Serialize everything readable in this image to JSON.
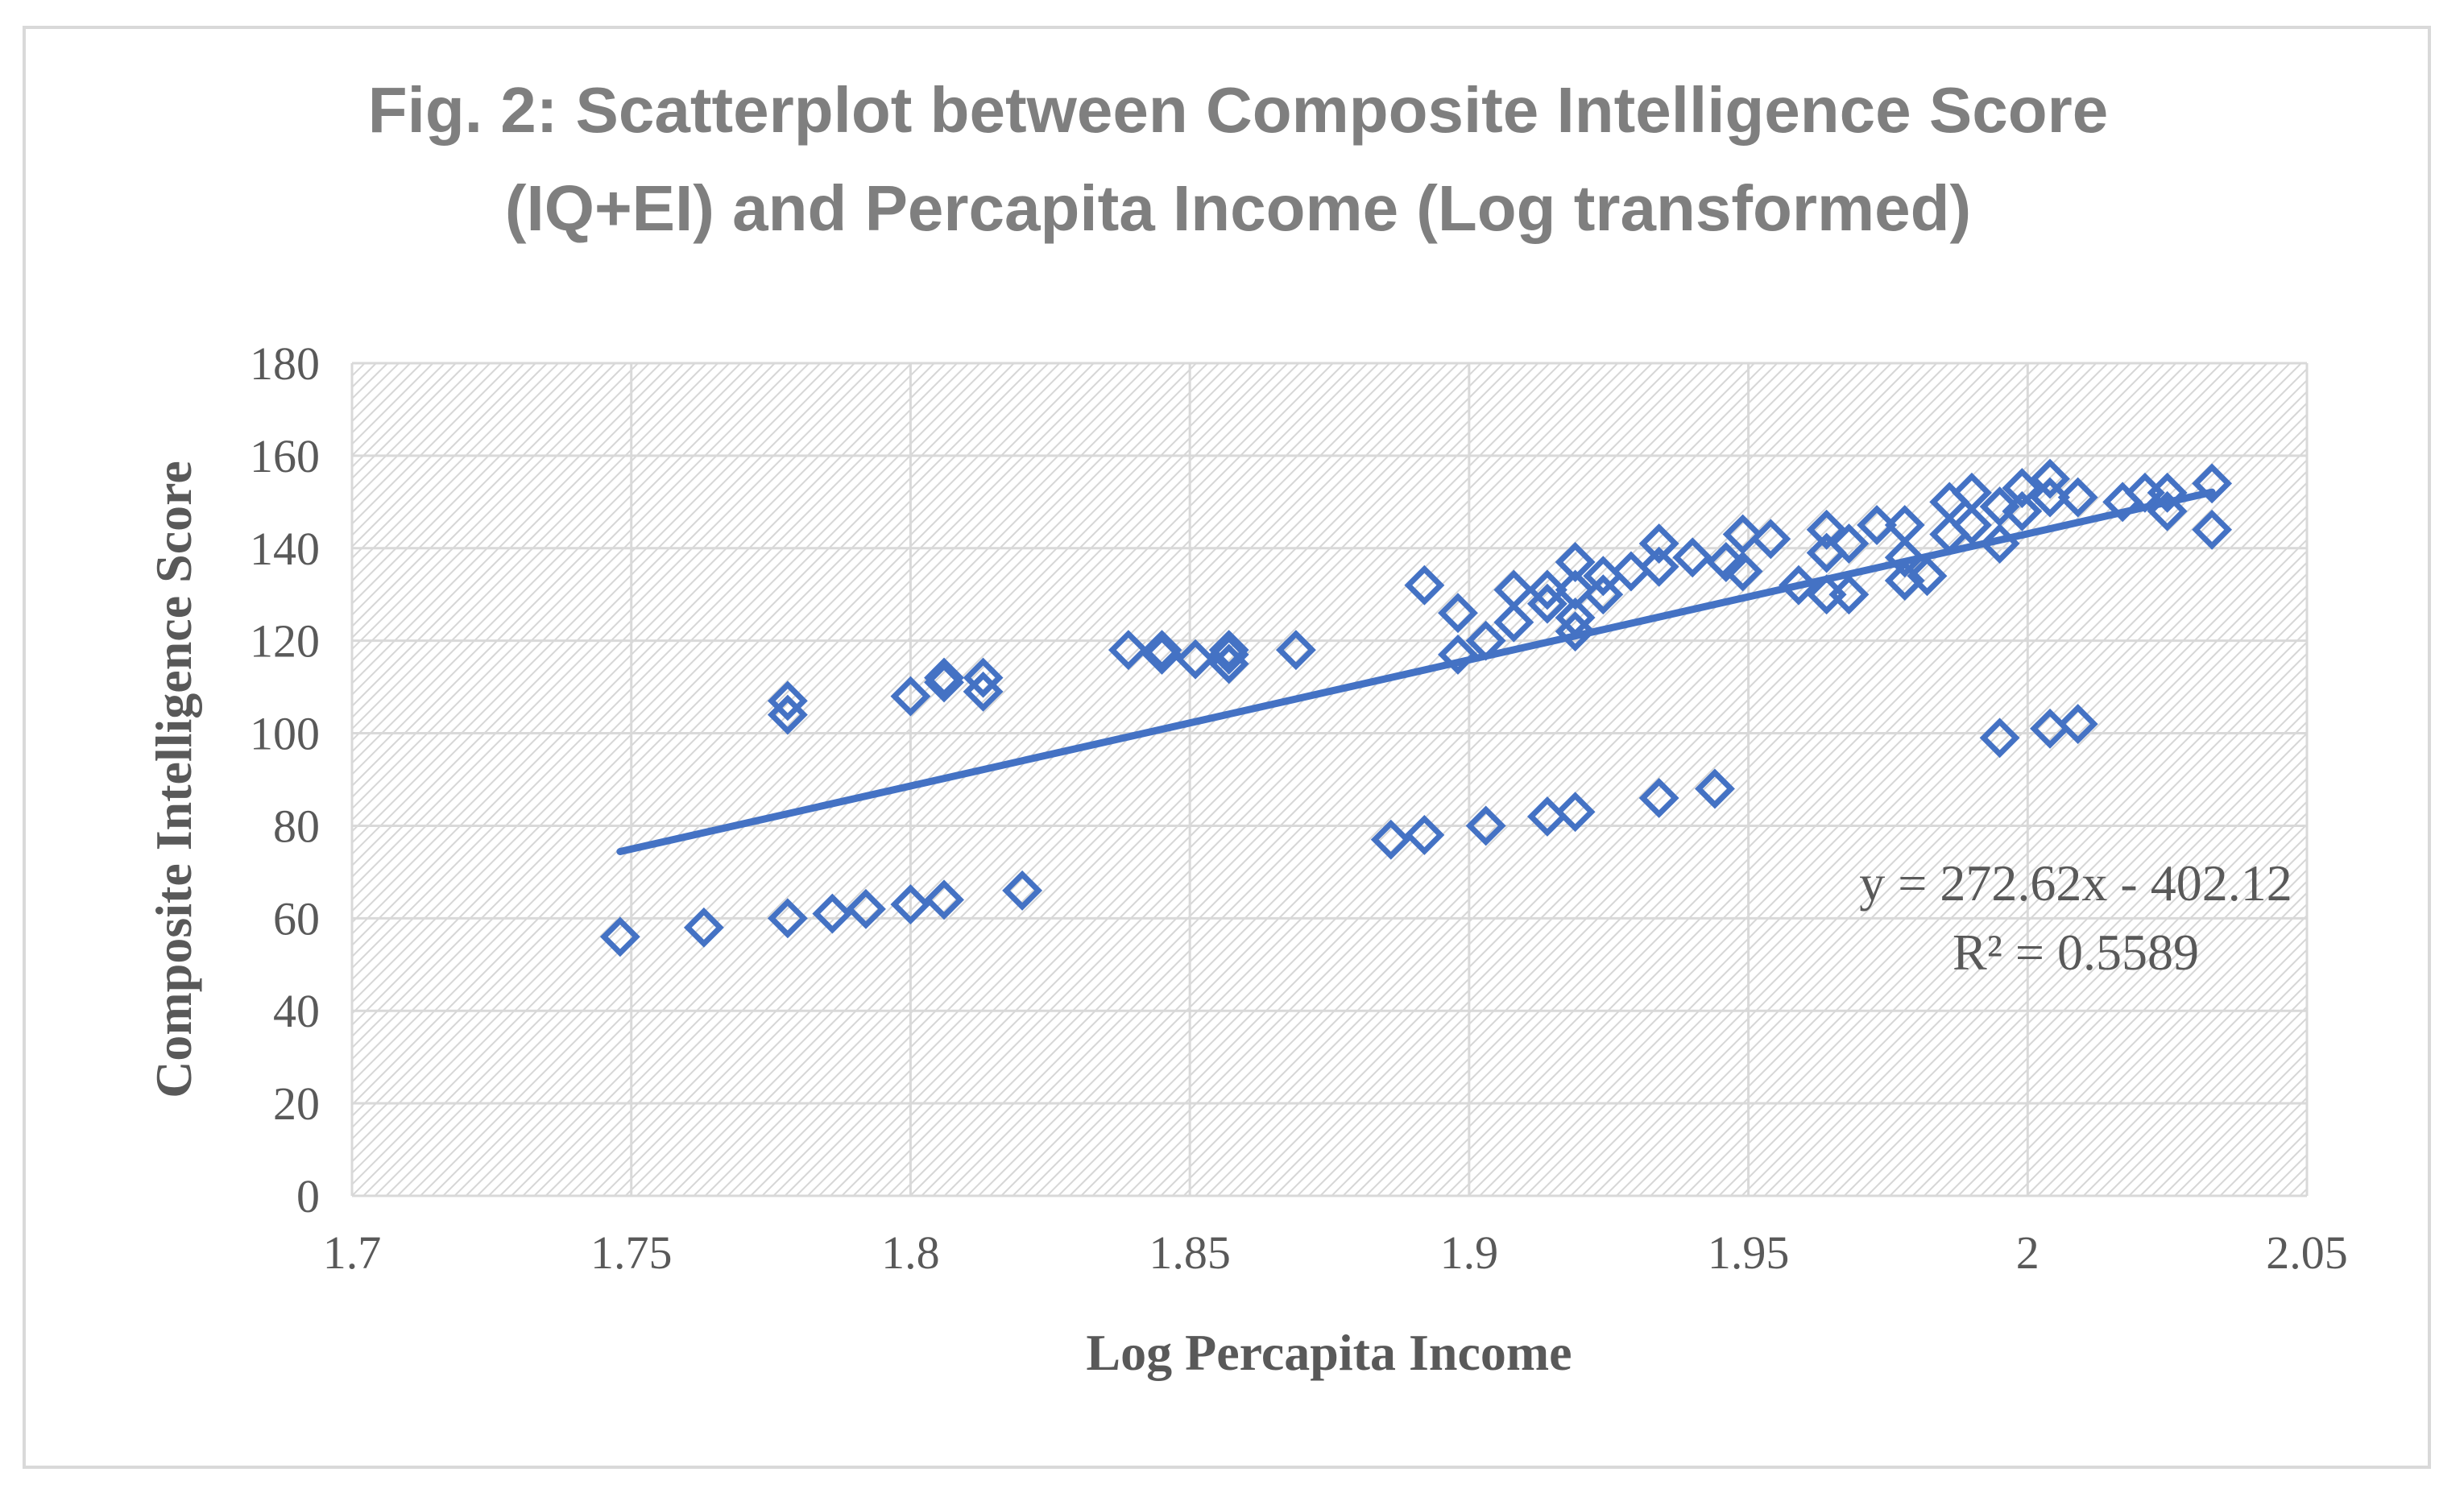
{
  "chart_data": {
    "type": "scatter",
    "title_lines": [
      "Fig. 2: Scatterplot between Composite Intelligence Score",
      "(IQ+EI) and Percapita Income (Log transformed)"
    ],
    "xlabel": "Log Percapita Income",
    "ylabel": "Composite Intelligence Score",
    "xlim": [
      1.7,
      2.05
    ],
    "ylim": [
      0,
      180
    ],
    "x_ticks": [
      "1.7",
      "1.75",
      "1.8",
      "1.85",
      "1.9",
      "1.95",
      "2",
      "2.05"
    ],
    "y_ticks": [
      "0",
      "20",
      "40",
      "60",
      "80",
      "100",
      "120",
      "140",
      "160",
      "180"
    ],
    "grid": true,
    "legend": "none",
    "series": [
      {
        "color": "#4472c4",
        "marker": "diamond-open",
        "points": [
          [
            1.748,
            56
          ],
          [
            1.763,
            58
          ],
          [
            1.778,
            60
          ],
          [
            1.786,
            61
          ],
          [
            1.792,
            62
          ],
          [
            1.8,
            63
          ],
          [
            1.806,
            64
          ],
          [
            1.82,
            66
          ],
          [
            1.778,
            107
          ],
          [
            1.778,
            104
          ],
          [
            1.8,
            108
          ],
          [
            1.806,
            111
          ],
          [
            1.806,
            112
          ],
          [
            1.813,
            109
          ],
          [
            1.813,
            112
          ],
          [
            1.839,
            118
          ],
          [
            1.845,
            118
          ],
          [
            1.845,
            117
          ],
          [
            1.851,
            116
          ],
          [
            1.857,
            118
          ],
          [
            1.857,
            117
          ],
          [
            1.857,
            115
          ],
          [
            1.869,
            118
          ],
          [
            1.886,
            77
          ],
          [
            1.892,
            78
          ],
          [
            1.903,
            80
          ],
          [
            1.914,
            82
          ],
          [
            1.919,
            83
          ],
          [
            1.934,
            86
          ],
          [
            1.944,
            88
          ],
          [
            1.892,
            132
          ],
          [
            1.898,
            126
          ],
          [
            1.898,
            117
          ],
          [
            1.903,
            120
          ],
          [
            1.908,
            131
          ],
          [
            1.908,
            124
          ],
          [
            1.914,
            128
          ],
          [
            1.914,
            131
          ],
          [
            1.919,
            137
          ],
          [
            1.919,
            131
          ],
          [
            1.919,
            122
          ],
          [
            1.919,
            125
          ],
          [
            1.924,
            134
          ],
          [
            1.924,
            130
          ],
          [
            1.929,
            135
          ],
          [
            1.934,
            141
          ],
          [
            1.934,
            136
          ],
          [
            1.94,
            138
          ],
          [
            1.946,
            137
          ],
          [
            1.949,
            143
          ],
          [
            1.949,
            135
          ],
          [
            1.954,
            142
          ],
          [
            1.959,
            132
          ],
          [
            1.964,
            144
          ],
          [
            1.964,
            139
          ],
          [
            1.964,
            130
          ],
          [
            1.968,
            141
          ],
          [
            1.968,
            130
          ],
          [
            1.973,
            145
          ],
          [
            1.978,
            145
          ],
          [
            1.978,
            138
          ],
          [
            1.978,
            133
          ],
          [
            1.982,
            134
          ],
          [
            1.986,
            150
          ],
          [
            1.986,
            143
          ],
          [
            1.99,
            152
          ],
          [
            1.99,
            145
          ],
          [
            1.995,
            149
          ],
          [
            1.995,
            141
          ],
          [
            1.999,
            153
          ],
          [
            1.999,
            148
          ],
          [
            2.004,
            155
          ],
          [
            2.004,
            151
          ],
          [
            2.009,
            151
          ],
          [
            2.017,
            150
          ],
          [
            2.021,
            152
          ],
          [
            2.025,
            152
          ],
          [
            2.025,
            148
          ],
          [
            2.033,
            154
          ],
          [
            2.033,
            144
          ],
          [
            1.995,
            99
          ],
          [
            2.004,
            101
          ],
          [
            2.009,
            102
          ]
        ]
      }
    ],
    "trendline": {
      "type": "linear",
      "slope": 272.62,
      "intercept": -402.12,
      "x_start": 1.748,
      "x_end": 2.033,
      "equation_label": "y = 272.62x - 402.12",
      "r2_label": "R² = 0.5589"
    }
  }
}
